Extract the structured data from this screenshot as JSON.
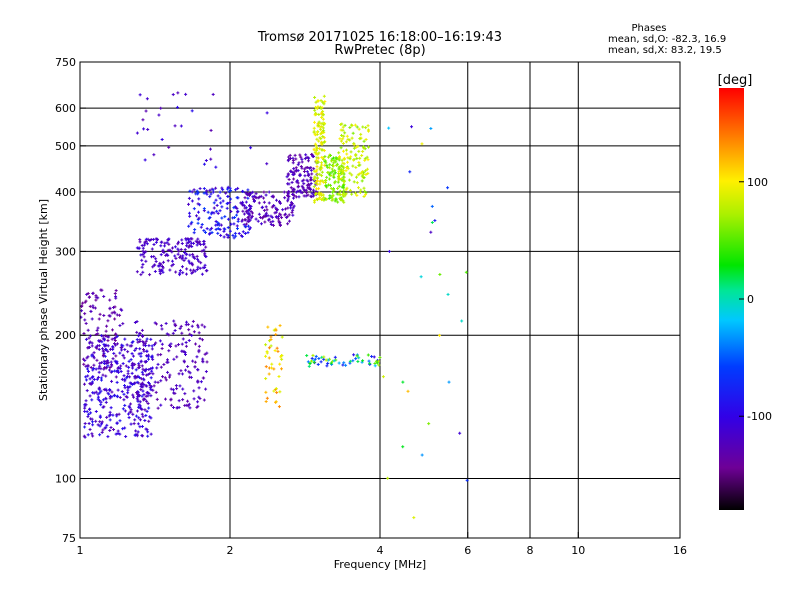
{
  "chart_data": {
    "type": "scatter",
    "title": "Tromsø 20171025 16:18:00–16:19:43",
    "subtitle": "RwPretec (8p)",
    "stats": {
      "heading": "Phases",
      "line1": "mean, sd,O: -82.3, 16.9",
      "line2": "mean, sd,X:  83.2, 19.5"
    },
    "xlabel": "Frequency [MHz]",
    "ylabel": "Stationary phase Virtual Height [km]",
    "x_scale": "log",
    "y_scale": "log",
    "xlim": [
      1,
      16
    ],
    "ylim": [
      75,
      750
    ],
    "x_ticks": [
      1,
      2,
      4,
      6,
      8,
      10,
      16
    ],
    "y_ticks": [
      75,
      100,
      200,
      300,
      400,
      500,
      600,
      750
    ],
    "x_gridlines": [
      2,
      4,
      6,
      8,
      10
    ],
    "y_gridlines": [
      100,
      200,
      300,
      400,
      500,
      600
    ],
    "colorbar": {
      "label": "[deg]",
      "range": [
        -180,
        180
      ],
      "ticks": [
        100,
        0,
        -100
      ]
    },
    "clusters": [
      {
        "f": [
          1.02,
          1.4
        ],
        "h": [
          122,
          200
        ],
        "phase": [
          -130,
          -85
        ],
        "n": 380
      },
      {
        "f": [
          1.0,
          1.22
        ],
        "h": [
          170,
          250
        ],
        "phase": [
          -145,
          -115
        ],
        "n": 120
      },
      {
        "f": [
          1.28,
          1.8
        ],
        "h": [
          140,
          215
        ],
        "phase": [
          -135,
          -110
        ],
        "n": 200
      },
      {
        "f": [
          1.3,
          1.8
        ],
        "h": [
          268,
          320
        ],
        "phase": [
          -130,
          -105
        ],
        "n": 180
      },
      {
        "f": [
          1.65,
          2.2
        ],
        "h": [
          320,
          410
        ],
        "phase": [
          -120,
          -60
        ],
        "n": 160
      },
      {
        "f": [
          2.1,
          2.7
        ],
        "h": [
          340,
          400
        ],
        "phase": [
          -140,
          -110
        ],
        "n": 140
      },
      {
        "f": [
          2.6,
          3.0
        ],
        "h": [
          390,
          480
        ],
        "phase": [
          -140,
          -110
        ],
        "n": 140
      },
      {
        "f": [
          2.95,
          3.1
        ],
        "h": [
          380,
          640
        ],
        "phase": [
          70,
          110
        ],
        "n": 150
      },
      {
        "f": [
          3.1,
          3.4
        ],
        "h": [
          380,
          480
        ],
        "phase": [
          40,
          80
        ],
        "n": 110
      },
      {
        "f": [
          3.3,
          3.8
        ],
        "h": [
          390,
          560
        ],
        "phase": [
          60,
          100
        ],
        "n": 140
      },
      {
        "f": [
          2.35,
          2.55
        ],
        "h": [
          140,
          215
        ],
        "phase": [
          80,
          140
        ],
        "n": 45
      },
      {
        "f": [
          2.85,
          4.0
        ],
        "h": [
          172,
          182
        ],
        "phase": [
          -100,
          80
        ],
        "n": 60
      },
      {
        "f": [
          1.3,
          2.4
        ],
        "h": [
          450,
          650
        ],
        "phase": [
          -130,
          -90
        ],
        "n": 30
      },
      {
        "f": [
          4.0,
          6.0
        ],
        "h": [
          80,
          600
        ],
        "phase": [
          -120,
          120
        ],
        "n": 28
      }
    ]
  }
}
